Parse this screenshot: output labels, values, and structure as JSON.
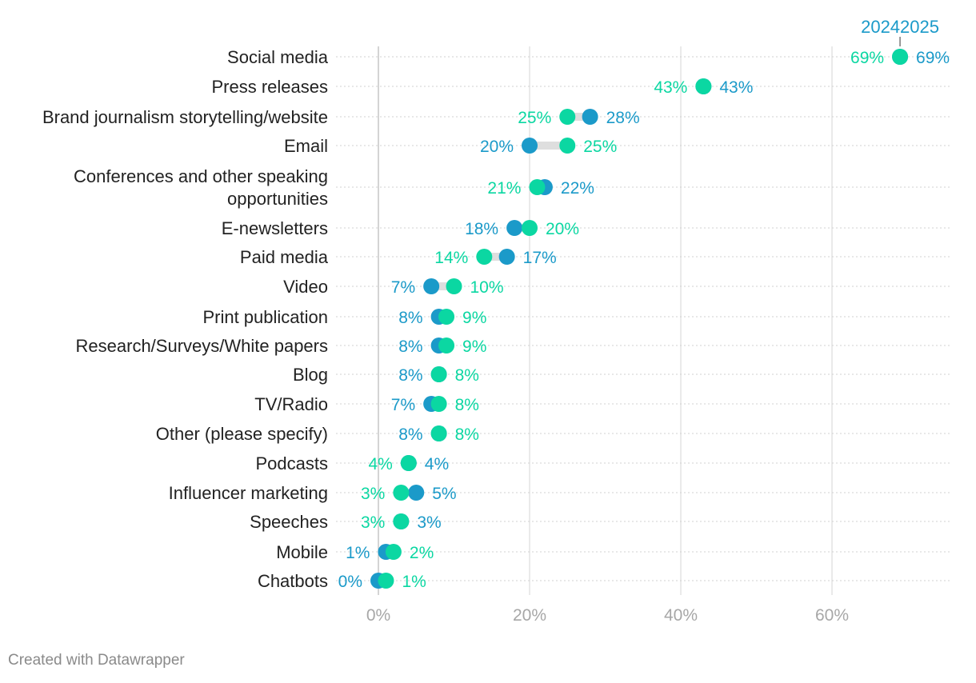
{
  "chart_data": {
    "type": "dot-range",
    "title": "",
    "xlabel": "",
    "ylabel": "",
    "xlim": [
      0,
      75
    ],
    "x_ticks": [
      0,
      20,
      40,
      60
    ],
    "x_tick_labels": [
      "0%",
      "20%",
      "40%",
      "60%"
    ],
    "grid": true,
    "legend": {
      "position": "top-right",
      "entries": [
        "2024",
        "2025"
      ]
    },
    "series": [
      {
        "name": "2024",
        "color": "#1b9ac9"
      },
      {
        "name": "2025",
        "color": "#0bd7a2"
      }
    ],
    "categories": [
      {
        "label": [
          "Social media"
        ],
        "v2024": 69,
        "v2025": 69,
        "l2024": "69%",
        "l2025": "69%"
      },
      {
        "label": [
          "Press releases"
        ],
        "v2024": 43,
        "v2025": 43,
        "l2024": "43%",
        "l2025": "43%"
      },
      {
        "label": [
          "Brand journalism storytelling/website"
        ],
        "v2024": 28,
        "v2025": 25,
        "l2024": "28%",
        "l2025": "25%"
      },
      {
        "label": [
          "Email"
        ],
        "v2024": 20,
        "v2025": 25,
        "l2024": "20%",
        "l2025": "25%"
      },
      {
        "label": [
          "Conferences and other speaking",
          "opportunities"
        ],
        "v2024": 22,
        "v2025": 21,
        "l2024": "22%",
        "l2025": "21%"
      },
      {
        "label": [
          "E-newsletters"
        ],
        "v2024": 18,
        "v2025": 20,
        "l2024": "18%",
        "l2025": "20%"
      },
      {
        "label": [
          "Paid media"
        ],
        "v2024": 17,
        "v2025": 14,
        "l2024": "17%",
        "l2025": "14%"
      },
      {
        "label": [
          "Video"
        ],
        "v2024": 7,
        "v2025": 10,
        "l2024": "7%",
        "l2025": "10%"
      },
      {
        "label": [
          "Print publication"
        ],
        "v2024": 8,
        "v2025": 9,
        "l2024": "8%",
        "l2025": "9%"
      },
      {
        "label": [
          "Research/Surveys/White papers"
        ],
        "v2024": 8,
        "v2025": 9,
        "l2024": "8%",
        "l2025": "9%"
      },
      {
        "label": [
          "Blog"
        ],
        "v2024": 8,
        "v2025": 8,
        "l2024": "8%",
        "l2025": "8%"
      },
      {
        "label": [
          "TV/Radio"
        ],
        "v2024": 7,
        "v2025": 8,
        "l2024": "7%",
        "l2025": "8%"
      },
      {
        "label": [
          "Other (please specify)"
        ],
        "v2024": 8,
        "v2025": 8,
        "l2024": "8%",
        "l2025": "8%"
      },
      {
        "label": [
          "Podcasts"
        ],
        "v2024": 4,
        "v2025": 4,
        "l2024": "4%",
        "l2025": "4%"
      },
      {
        "label": [
          "Influencer marketing"
        ],
        "v2024": 5,
        "v2025": 3,
        "l2024": "5%",
        "l2025": "3%"
      },
      {
        "label": [
          "Speeches"
        ],
        "v2024": 3,
        "v2025": 3,
        "l2024": "3%",
        "l2025": "3%"
      },
      {
        "label": [
          "Mobile"
        ],
        "v2024": 1,
        "v2025": 2,
        "l2024": "1%",
        "l2025": "2%"
      },
      {
        "label": [
          "Chatbots"
        ],
        "v2024": 0,
        "v2025": 1,
        "l2024": "0%",
        "l2025": "1%"
      }
    ]
  },
  "footer": {
    "credit": "Created with Datawrapper"
  }
}
